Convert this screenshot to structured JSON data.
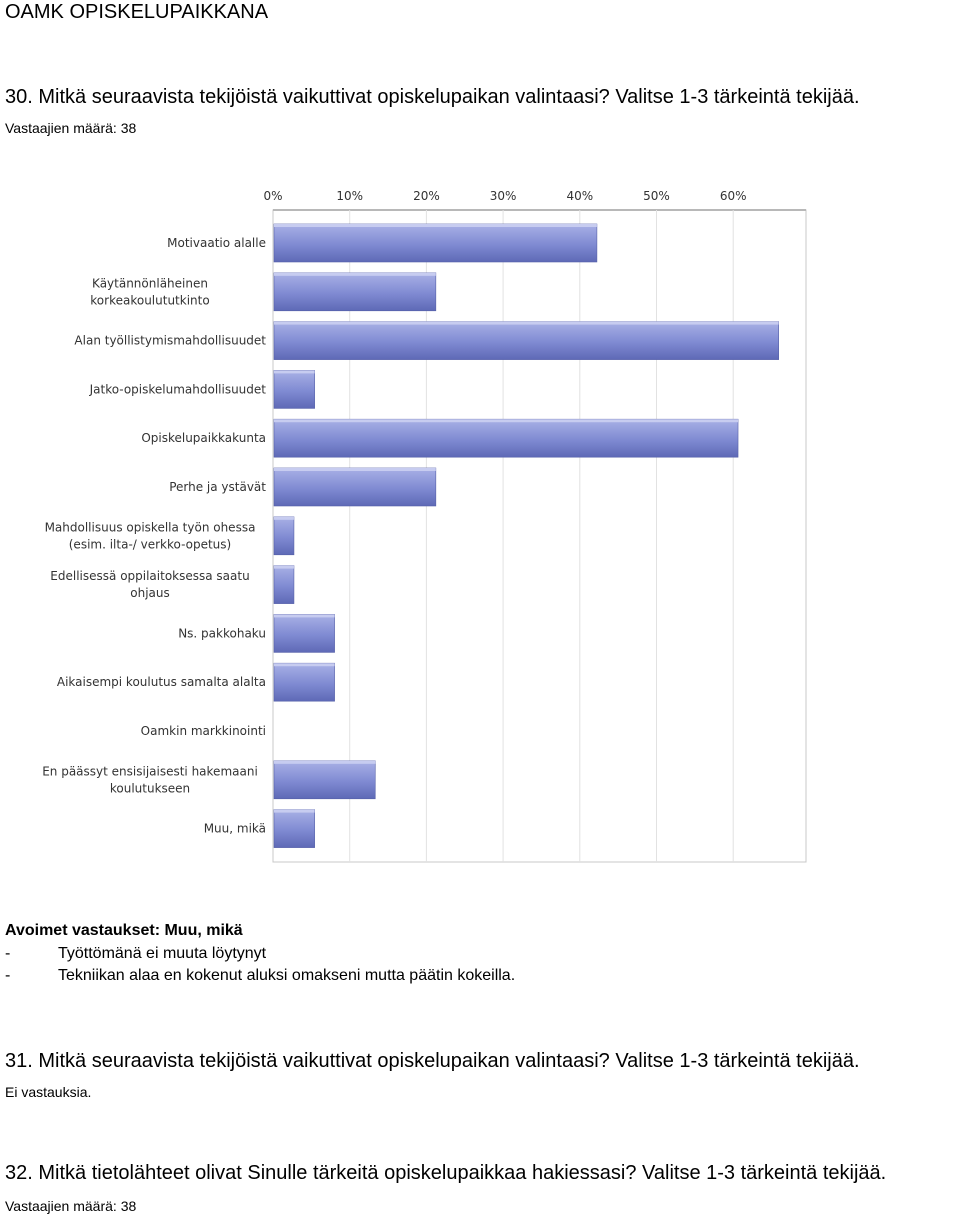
{
  "header": {
    "title": "OAMK OPISKELUPAIKKANA"
  },
  "q30": {
    "title": "30. Mitkä seuraavista tekijöistä vaikuttivat opiskelupaikan valintaasi? Valitse 1-3 tärkeintä tekijää.",
    "respondents": "Vastaajien määrä: 38"
  },
  "chart_data": {
    "type": "bar",
    "orientation": "horizontal",
    "categories": [
      [
        "Motivaatio alalle"
      ],
      [
        "Käytännönläheinen",
        "korkeakoulututkinto"
      ],
      [
        "Alan työllistymismahdollisuudet"
      ],
      [
        "Jatko-opiskelumahdollisuudet"
      ],
      [
        "Opiskelupaikkakunta"
      ],
      [
        "Perhe ja ystävät"
      ],
      [
        "Mahdollisuus opiskella työn ohessa",
        "(esim. ilta-/ verkko-opetus)"
      ],
      [
        "Edellisessä oppilaitoksessa saatu",
        "ohjaus"
      ],
      [
        "Ns. pakkohaku"
      ],
      [
        "Aikaisempi koulutus samalta alalta"
      ],
      [
        "Oamkin markkinointi"
      ],
      [
        "En päässyt ensisijaisesti hakemaani",
        "koulutukseen"
      ],
      [
        "Muu, mikä"
      ]
    ],
    "values": [
      42.1,
      21.1,
      65.8,
      5.3,
      60.5,
      21.1,
      2.6,
      2.6,
      7.9,
      7.9,
      0,
      13.2,
      5.3
    ],
    "xlim": [
      0,
      70
    ],
    "ticks": [
      "0%",
      "10%",
      "20%",
      "30%",
      "40%",
      "50%",
      "60%"
    ],
    "tick_values": [
      0,
      10,
      20,
      30,
      40,
      50,
      60
    ],
    "bar_color": "#7b86cf",
    "grid": true
  },
  "open_answers": {
    "heading": "Avoimet vastaukset: Muu, mikä",
    "items": [
      {
        "dash": "-",
        "text": "Työttömänä ei muuta löytynyt"
      },
      {
        "dash": "-",
        "text": "Tekniikan alaa en kokenut aluksi omakseni mutta päätin kokeilla."
      }
    ]
  },
  "q31": {
    "title": "31. Mitkä seuraavista tekijöistä vaikuttivat opiskelupaikan valintaasi? Valitse 1-3 tärkeintä tekijää.",
    "no_answers": "Ei vastauksia."
  },
  "q32": {
    "title": "32. Mitkä tietolähteet olivat Sinulle tärkeitä opiskelupaikkaa hakiessasi? Valitse 1-3 tärkeintä tekijää.",
    "respondents": "Vastaajien määrä: 38"
  }
}
